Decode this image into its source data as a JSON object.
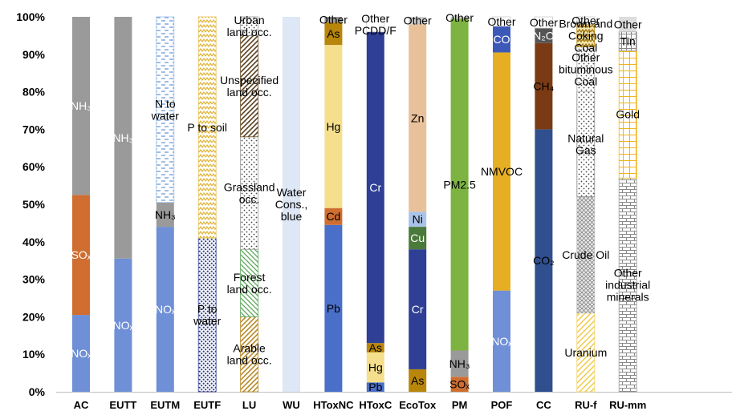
{
  "chart_data": {
    "type": "bar",
    "stacked": true,
    "percent": true,
    "ylim": [
      0,
      100
    ],
    "yticks": [
      "0%",
      "10%",
      "20%",
      "30%",
      "40%",
      "50%",
      "60%",
      "70%",
      "80%",
      "90%",
      "100%"
    ],
    "categories": [
      "AC",
      "EUTT",
      "EUTM",
      "EUTF",
      "LU",
      "WU",
      "HToxNC",
      "HToxC",
      "EcoTox",
      "PM",
      "POF",
      "CC",
      "RU-f",
      "RU-mm"
    ],
    "bars": [
      {
        "category": "AC",
        "segments": [
          {
            "label": "NOₓ",
            "value": 20.5,
            "color": "#6f8fd6",
            "pattern": "none",
            "text_color": "#ffffff"
          },
          {
            "label": "SOₓ",
            "value": 32,
            "color": "#cf6e30",
            "pattern": "none",
            "text_color": "#ffffff"
          },
          {
            "label": "NH₃",
            "value": 47.5,
            "color": "#9a9a9a",
            "pattern": "none",
            "text_color": "#ffffff"
          }
        ]
      },
      {
        "category": "EUTT",
        "segments": [
          {
            "label": "NOₓ",
            "value": 35.5,
            "color": "#6f8fd6",
            "pattern": "none",
            "text_color": "#ffffff"
          },
          {
            "label": "NH₃",
            "value": 64.5,
            "color": "#9a9a9a",
            "pattern": "none",
            "text_color": "#ffffff"
          }
        ]
      },
      {
        "category": "EUTM",
        "segments": [
          {
            "label": "NOₓ",
            "value": 44,
            "color": "#6f8fd6",
            "pattern": "none",
            "text_color": "#ffffff"
          },
          {
            "label": "NH₃",
            "value": 6.5,
            "color": "#9a9a9a",
            "pattern": "none",
            "text_color": "#000000"
          },
          {
            "label": "N to water",
            "value": 49.5,
            "color": "#9dc0e8",
            "pattern": "dash",
            "text_color": "#000000"
          }
        ]
      },
      {
        "category": "EUTF",
        "segments": [
          {
            "label": "P to water",
            "value": 41,
            "color": "#2f3e8f",
            "pattern": "dots",
            "text_color": "#000000"
          },
          {
            "label": "P to soil",
            "value": 59,
            "color": "#e6c25a",
            "pattern": "zigzag",
            "text_color": "#000000"
          }
        ]
      },
      {
        "category": "LU",
        "segments": [
          {
            "label": "Arable land occ.",
            "value": 20,
            "color": "#b78a2a",
            "pattern": "diag-up",
            "text_color": "#000000"
          },
          {
            "label": "Forest land occ.",
            "value": 18,
            "color": "#5aa65a",
            "pattern": "diag-down",
            "text_color": "#000000"
          },
          {
            "label": "Grassland occ.",
            "value": 30,
            "color": "#999999",
            "pattern": "dots",
            "text_color": "#000000"
          },
          {
            "label": "Unspecified land occ.",
            "value": 27,
            "color": "#6b4f2a",
            "pattern": "diag-up",
            "text_color": "#000000"
          },
          {
            "label": "Urban land occ.",
            "value": 5,
            "color": "#999999",
            "pattern": "dots",
            "text_color": "#000000"
          }
        ]
      },
      {
        "category": "WU",
        "segments": [
          {
            "label": "Water Cons., blue",
            "value": 100,
            "color": "#dde7f5",
            "pattern": "none",
            "text_color": "#000000"
          }
        ]
      },
      {
        "category": "HToxNC",
        "segments": [
          {
            "label": "Pb",
            "value": 44.5,
            "color": "#4a6fc8",
            "pattern": "none",
            "text_color": "#000000"
          },
          {
            "label": "Cd",
            "value": 4.5,
            "color": "#cf6e30",
            "pattern": "none",
            "text_color": "#000000"
          },
          {
            "label": "Hg",
            "value": 43.5,
            "color": "#f5df8c",
            "pattern": "none",
            "text_color": "#000000"
          },
          {
            "label": "As",
            "value": 6,
            "color": "#b8860b",
            "pattern": "none",
            "text_color": "#000000"
          },
          {
            "label": "Other",
            "value": 1.5,
            "color": "#9a9a9a",
            "pattern": "none",
            "text_color": "#000000"
          }
        ]
      },
      {
        "category": "HToxC",
        "segments": [
          {
            "label": "Pb",
            "value": 2.5,
            "color": "#4a6fc8",
            "pattern": "none",
            "text_color": "#000000"
          },
          {
            "label": "Hg",
            "value": 8,
            "color": "#f5df8c",
            "pattern": "none",
            "text_color": "#000000"
          },
          {
            "label": "As",
            "value": 2.5,
            "color": "#b8860b",
            "pattern": "none",
            "text_color": "#000000"
          },
          {
            "label": "Cr",
            "value": 83,
            "color": "#2f3f95",
            "pattern": "none",
            "text_color": "#ffffff"
          },
          {
            "label": "Other PCDD/F",
            "value": 4,
            "color": "#ffffff",
            "pattern": "none",
            "text_color": "#000000"
          }
        ]
      },
      {
        "category": "EcoTox",
        "segments": [
          {
            "label": "As",
            "value": 6,
            "color": "#b8860b",
            "pattern": "none",
            "text_color": "#000000"
          },
          {
            "label": "Cr",
            "value": 32,
            "color": "#2f3f95",
            "pattern": "none",
            "text_color": "#ffffff"
          },
          {
            "label": "Cu",
            "value": 6,
            "color": "#4a7a3a",
            "pattern": "none",
            "text_color": "#ffffff"
          },
          {
            "label": "Ni",
            "value": 4,
            "color": "#a9c4e8",
            "pattern": "none",
            "text_color": "#000000"
          },
          {
            "label": "Zn",
            "value": 50,
            "color": "#e8c19a",
            "pattern": "none",
            "text_color": "#000000"
          },
          {
            "label": "Other",
            "value": 2,
            "color": "#cccccc",
            "pattern": "none",
            "text_color": "#000000"
          }
        ]
      },
      {
        "category": "PM",
        "segments": [
          {
            "label": "SOₓ",
            "value": 4,
            "color": "#cf6e30",
            "pattern": "none",
            "text_color": "#000000"
          },
          {
            "label": "NH₃",
            "value": 7,
            "color": "#9a9a9a",
            "pattern": "none",
            "text_color": "#000000"
          },
          {
            "label": "PM2.5",
            "value": 88.5,
            "color": "#7db341",
            "pattern": "none",
            "text_color": "#000000"
          },
          {
            "label": "Other",
            "value": 0.5,
            "color": "#cccccc",
            "pattern": "none",
            "text_color": "#000000"
          }
        ]
      },
      {
        "category": "POF",
        "segments": [
          {
            "label": "NOₓ",
            "value": 27,
            "color": "#6f8fd6",
            "pattern": "none",
            "text_color": "#ffffff"
          },
          {
            "label": "NMVOC",
            "value": 63.5,
            "color": "#e6ae22",
            "pattern": "none",
            "text_color": "#000000"
          },
          {
            "label": "CO",
            "value": 7,
            "color": "#3c59b8",
            "pattern": "none",
            "text_color": "#ffffff"
          },
          {
            "label": "Other",
            "value": 2.5,
            "color": "#ffffff",
            "pattern": "none",
            "text_color": "#000000"
          }
        ]
      },
      {
        "category": "CC",
        "segments": [
          {
            "label": "CO₂",
            "value": 70,
            "color": "#2f4f8f",
            "pattern": "none",
            "text_color": "#000000"
          },
          {
            "label": "CH₄",
            "value": 23,
            "color": "#7a3a14",
            "pattern": "none",
            "text_color": "#000000"
          },
          {
            "label": "N₂O",
            "value": 4,
            "color": "#555555",
            "pattern": "none",
            "text_color": "#ffffff"
          },
          {
            "label": "Other",
            "value": 3,
            "color": "#ffffff",
            "pattern": "none",
            "text_color": "#000000"
          }
        ]
      },
      {
        "category": "RU-f",
        "segments": [
          {
            "label": "Uranium",
            "value": 21,
            "color": "#f3d36a",
            "pattern": "diag-up",
            "text_color": "#000000"
          },
          {
            "label": "Crude Oil",
            "value": 31,
            "color": "#bbbbbb",
            "pattern": "crosshatch",
            "text_color": "#000000"
          },
          {
            "label": "Natural Gas",
            "value": 28,
            "color": "#888888",
            "pattern": "dots",
            "text_color": "#000000"
          },
          {
            "label": "Other bituminous Coal",
            "value": 12,
            "color": "#aaaaaa",
            "pattern": "dots",
            "text_color": "#000000"
          },
          {
            "label": "Brown and Coking Coal",
            "value": 6,
            "color": "#b8860b",
            "pattern": "zigzag",
            "text_color": "#000000"
          },
          {
            "label": "Other",
            "value": 2,
            "color": "#ffffff",
            "pattern": "none",
            "text_color": "#000000"
          }
        ]
      },
      {
        "category": "RU-mm",
        "segments": [
          {
            "label": "Other industrial minerals",
            "value": 57,
            "color": "#9a9a9a",
            "pattern": "brick",
            "text_color": "#000000"
          },
          {
            "label": "Gold",
            "value": 34,
            "color": "#f0b51e",
            "pattern": "grid",
            "text_color": "#000000"
          },
          {
            "label": "Tin",
            "value": 5,
            "color": "#888888",
            "pattern": "grid",
            "text_color": "#000000"
          },
          {
            "label": "Other",
            "value": 4,
            "color": "#dddddd",
            "pattern": "none",
            "text_color": "#000000"
          }
        ]
      }
    ]
  }
}
